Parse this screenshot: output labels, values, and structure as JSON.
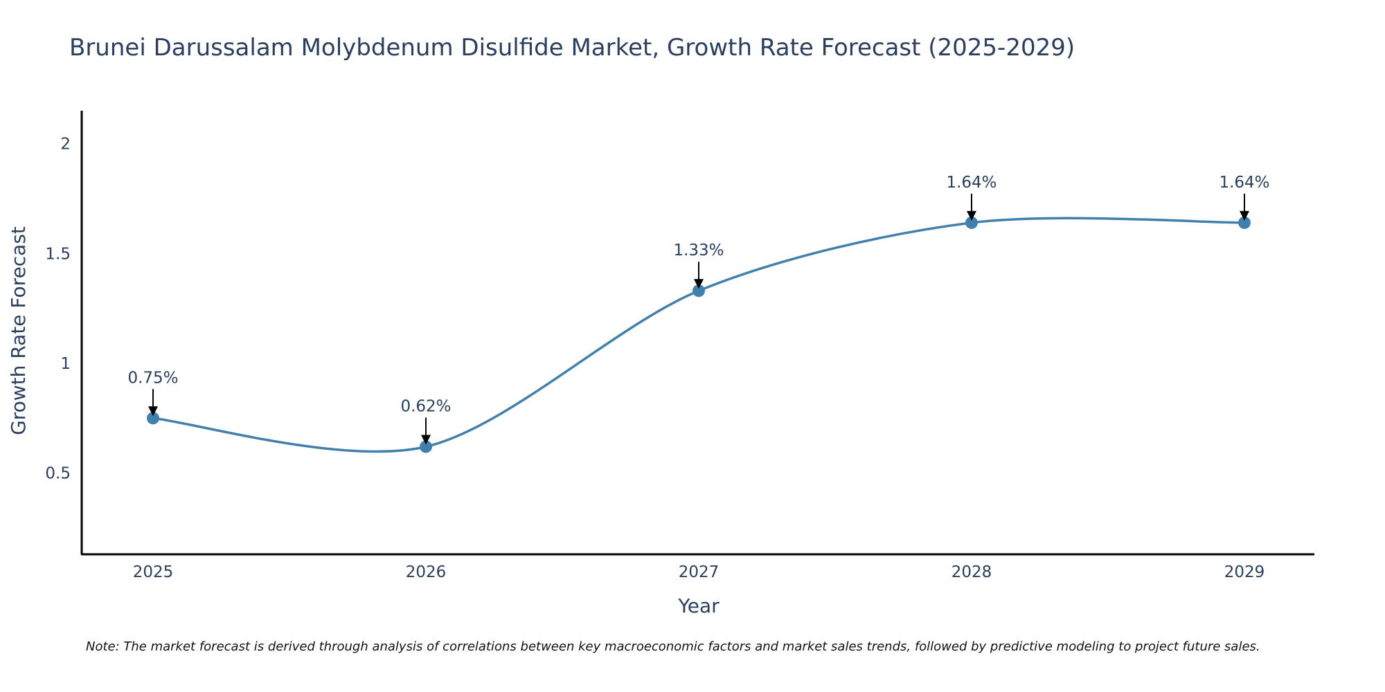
{
  "chart_data": {
    "type": "line",
    "title": "Brunei Darussalam Molybdenum Disulfide Market, Growth Rate Forecast (2025-2029)",
    "xlabel": "Year",
    "ylabel": "Growth Rate Forecast",
    "categories": [
      "2025",
      "2026",
      "2027",
      "2028",
      "2029"
    ],
    "series": [
      {
        "name": "Growth Rate Forecast",
        "values": [
          0.75,
          0.62,
          1.33,
          1.64,
          1.64
        ],
        "labels": [
          "0.75%",
          "0.62%",
          "1.33%",
          "1.64%",
          "1.64%"
        ],
        "color": "#4180ad"
      }
    ],
    "y_ticks": [
      "0.5",
      "1",
      "1.5",
      "2"
    ],
    "ylim": [
      0.13,
      2.15
    ],
    "grid": false,
    "line_shape": "spline",
    "note": "Note: The market forecast is derived through analysis of correlations between key macroeconomic factors and market sales trends, followed by predictive modeling to project future sales."
  }
}
